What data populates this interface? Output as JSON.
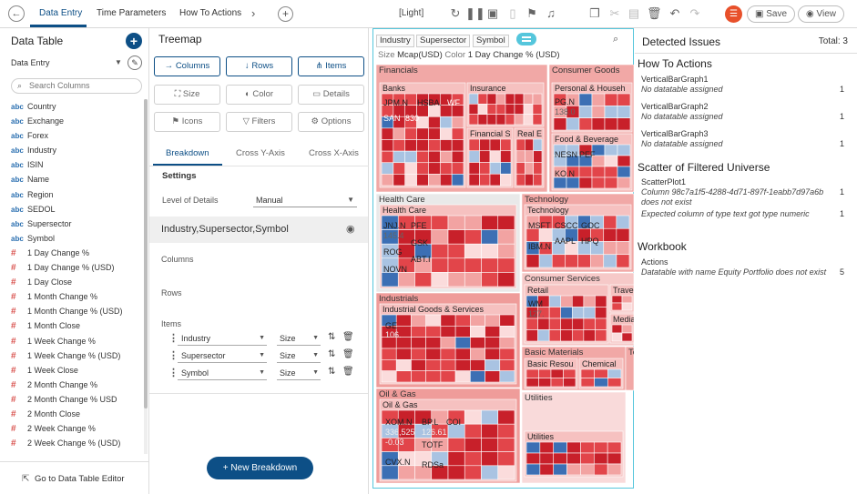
{
  "topbar": {
    "tabs": [
      "Data Entry",
      "Time Parameters",
      "How To Actions"
    ],
    "theme": "[Light]",
    "save_label": "Save",
    "view_label": "View"
  },
  "left": {
    "title": "Data Table",
    "datasource": "Data Entry",
    "search_placeholder": "Search Columns",
    "columns": [
      {
        "type": "abc",
        "name": "Country"
      },
      {
        "type": "abc",
        "name": "Exchange"
      },
      {
        "type": "abc",
        "name": "Forex"
      },
      {
        "type": "abc",
        "name": "Industry"
      },
      {
        "type": "abc",
        "name": "ISIN"
      },
      {
        "type": "abc",
        "name": "Name"
      },
      {
        "type": "abc",
        "name": "Region"
      },
      {
        "type": "abc",
        "name": "SEDOL"
      },
      {
        "type": "abc",
        "name": "Supersector"
      },
      {
        "type": "abc",
        "name": "Symbol"
      },
      {
        "type": "#",
        "name": "1 Day Change %"
      },
      {
        "type": "#",
        "name": "1 Day Change % (USD)"
      },
      {
        "type": "#",
        "name": "1 Day Close"
      },
      {
        "type": "#",
        "name": "1 Month Change %"
      },
      {
        "type": "#",
        "name": "1 Month Change % (USD)"
      },
      {
        "type": "#",
        "name": "1 Month Close"
      },
      {
        "type": "#",
        "name": "1 Week Change %"
      },
      {
        "type": "#",
        "name": "1 Week Change % (USD)"
      },
      {
        "type": "#",
        "name": "1 Week Close"
      },
      {
        "type": "#",
        "name": "2 Month Change %"
      },
      {
        "type": "#",
        "name": "2 Month Change % USD"
      },
      {
        "type": "#",
        "name": "2 Month Close"
      },
      {
        "type": "#",
        "name": "2 Week Change %"
      },
      {
        "type": "#",
        "name": "2 Week Change % (USD)"
      },
      {
        "type": "#",
        "name": "2 Week Close"
      }
    ],
    "footer_label": "Go to Data Table Editor"
  },
  "mid": {
    "title": "Treemap",
    "buttons": {
      "columns": "Columns",
      "rows": "Rows",
      "items": "Items",
      "size": "Size",
      "color": "Color",
      "details": "Details",
      "icons": "Icons",
      "filters": "Filters",
      "options": "Options"
    },
    "subtabs": [
      "Breakdown",
      "Cross Y-Axis",
      "Cross X-Axis"
    ],
    "settings_label": "Settings",
    "lod_label": "Level of Details",
    "lod_value": "Manual",
    "hierarchy": "Industry,Supersector,Symbol",
    "columns_label": "Columns",
    "rows_label": "Rows",
    "items_label": "Items",
    "items": [
      {
        "name": "Industry",
        "agg": "Size"
      },
      {
        "name": "Supersector",
        "agg": "Size"
      },
      {
        "name": "Symbol",
        "agg": "Size"
      }
    ],
    "new_breakdown": "New Breakdown"
  },
  "viz": {
    "chips": [
      "Industry",
      "Supersector",
      "Symbol"
    ],
    "size_label": "Size",
    "size_value": "Mcap(USD)",
    "color_label": "Color",
    "color_value": "1 Day Change % (USD)",
    "groups": [
      {
        "label": "Financials",
        "subs": [
          "Banks",
          "Insurance",
          "Financial S",
          "Real E"
        ]
      },
      {
        "label": "Consumer Goods",
        "subs": [
          "Personal & Househ",
          "Food & Beverage"
        ]
      },
      {
        "label": "Health Care",
        "subs": [
          "Health Care"
        ]
      },
      {
        "label": "Technology",
        "subs": [
          "Technology"
        ]
      },
      {
        "label": "Consumer Services",
        "subs": [
          "Retail",
          "Trave",
          "Media"
        ]
      },
      {
        "label": "Industrials",
        "subs": [
          "Industrial Goods & Services"
        ]
      },
      {
        "label": "Basic Materials",
        "subs": [
          "Basic Resou",
          "Chemical"
        ]
      },
      {
        "label": "Te",
        "subs": []
      },
      {
        "label": "Oil & Gas",
        "subs": [
          "Oil & Gas"
        ]
      },
      {
        "label": "Utilities",
        "subs": [
          "Utilities"
        ]
      }
    ],
    "leaves": [
      "JPM.N",
      "HSBA.",
      "WF",
      "SAN",
      "830",
      "PG.N",
      "138.0",
      "NESN",
      "PEF",
      "KO.N",
      "JNJ.N",
      "145.4",
      "PFE",
      "GSK",
      "ROG",
      "ABT.I",
      "NOVN",
      "MSFT",
      "CSCC",
      "GOC",
      "IBM.N",
      "AAPL",
      "HPQ",
      "WM",
      "127.",
      "GE",
      "106.",
      "XOM.N",
      "336,525",
      "-0.03",
      "BP.L",
      "126.61",
      "COI",
      "TOTF",
      "CVX.N",
      "RDSa"
    ],
    "colors": {
      "deep_red": "#c8202a",
      "red": "#e2454a",
      "light_red": "#f2a3a2",
      "pale": "#fbdcdc",
      "blue": "#3c6fb4",
      "light_blue": "#a9c3e2"
    }
  },
  "issues": {
    "title": "Detected Issues",
    "total": "Total: 3",
    "sections": [
      {
        "title": "How To Actions",
        "rows": [
          {
            "name": "VerticalBarGraph1",
            "msg": "No datatable assigned",
            "count": "1"
          },
          {
            "name": "VerticalBarGraph2",
            "msg": "No datatable assigned",
            "count": "1"
          },
          {
            "name": "VerticalBarGraph3",
            "msg": "No datatable assigned",
            "count": "1"
          }
        ]
      },
      {
        "title": "Scatter of Filtered Universe",
        "rows": [
          {
            "name": "ScatterPlot1",
            "msg": "Column 98c7a1f5-4288-4d71-897f-1eabb7d97a6b does not exist",
            "count": "1",
            "msg2": "Expected column of type text got type numeric",
            "count2": "1"
          }
        ]
      },
      {
        "title": "Workbook",
        "rows": [
          {
            "name": "Actions",
            "msg": "Datatable with name Equity Portfolio does not exist",
            "count": "5"
          }
        ]
      }
    ]
  }
}
